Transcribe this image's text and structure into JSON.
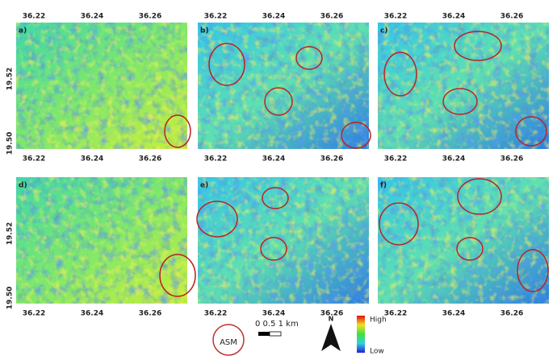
{
  "panels": [
    {
      "label": "a)"
    },
    {
      "label": "b)"
    },
    {
      "label": "c)"
    },
    {
      "label": "d)"
    },
    {
      "label": "e)"
    },
    {
      "label": "f)"
    }
  ],
  "x_ticks": [
    "36.22",
    "36.24",
    "36.26"
  ],
  "y_ticks": [
    "19.52",
    "19.50"
  ],
  "legend": {
    "symbol_label": "ASM",
    "scale_label": "0 0.5 1 km",
    "north": "N",
    "high": "High",
    "low": "Low"
  }
}
